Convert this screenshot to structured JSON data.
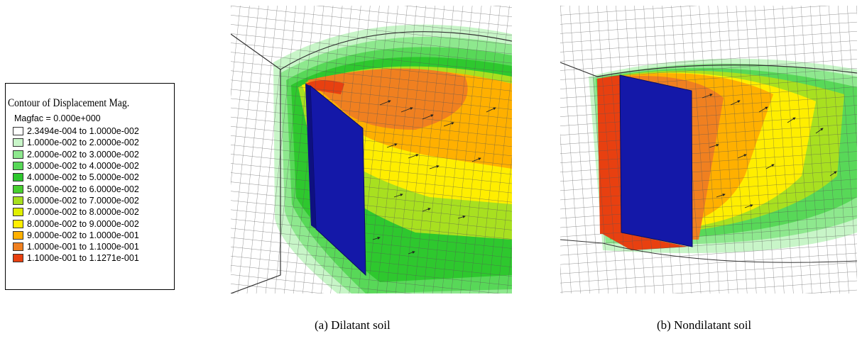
{
  "legend": {
    "title": "Contour of Displacement Mag.",
    "magfac": "Magfac =  0.000e+000",
    "entries": [
      {
        "label": "2.3494e-004 to  1.0000e-002",
        "color": "#ffffff"
      },
      {
        "label": "1.0000e-002 to  2.0000e-002",
        "color": "#c8f5c8"
      },
      {
        "label": "2.0000e-002 to  3.0000e-002",
        "color": "#8ee88e"
      },
      {
        "label": "3.0000e-002 to  4.0000e-002",
        "color": "#58d858"
      },
      {
        "label": "4.0000e-002 to  5.0000e-002",
        "color": "#2ec82e"
      },
      {
        "label": "5.0000e-002 to  6.0000e-002",
        "color": "#48d030"
      },
      {
        "label": "6.0000e-002 to  7.0000e-002",
        "color": "#a8e020"
      },
      {
        "label": "7.0000e-002 to  8.0000e-002",
        "color": "#e0f000"
      },
      {
        "label": "8.0000e-002 to  9.0000e-002",
        "color": "#ffee00"
      },
      {
        "label": "9.0000e-002 to  1.0000e-001",
        "color": "#ffb000"
      },
      {
        "label": "1.0000e-001 to  1.1000e-001",
        "color": "#f08020"
      },
      {
        "label": "1.1000e-001 to  1.1271e-001",
        "color": "#e84010"
      }
    ]
  },
  "captions": {
    "a": "(a) Dilatant soil",
    "b": "(b) Nondilatant soil"
  },
  "colors": {
    "wall": "#1418a8",
    "mesh": "#555555",
    "arrow": "#222222"
  }
}
